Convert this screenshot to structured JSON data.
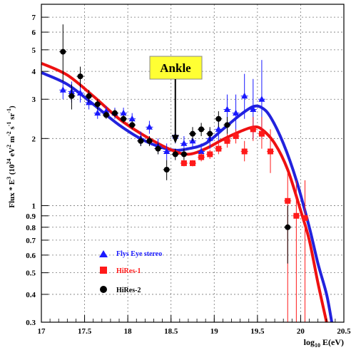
{
  "chart_data": {
    "type": "scatter",
    "title": "",
    "xlabel": "log10 E(eV)",
    "xlabel_parts": {
      "pre": "log",
      "sub": "10",
      "post": " E(eV)"
    },
    "ylabel": "Flux * E3 (10^24 eV2 m-2 s-1 sr-1)",
    "ylabel_parts": {
      "flux": "Flux * E",
      "e_sup": "3",
      "open": " (10",
      "p24": "24",
      "ev": " eV",
      "ev_sup": "2",
      "m": " m",
      "m_sup": "-2",
      "s": " s",
      "s_sup": "-1",
      "sr": " sr",
      "sr_sup": "-1",
      "close": ")"
    },
    "xlim": [
      17,
      20.5
    ],
    "ylim": [
      0.3,
      8
    ],
    "yscale": "log",
    "grid": true,
    "x_ticks": [
      "17",
      "17.5",
      "18",
      "18.5",
      "19",
      "19.5",
      "20",
      "20.5"
    ],
    "y_ticks": [
      "0.3",
      "0.4",
      "0.5",
      "0.6",
      "0.7",
      "0.8",
      "0.9",
      "1",
      "2",
      "3",
      "4",
      "5",
      "6",
      "7"
    ],
    "legend_position": "lower-left",
    "annotation": {
      "text": "Ankle",
      "arrow_to_x": 18.55,
      "arrow_to_y": 1.9,
      "background": "#ffff33"
    },
    "series": [
      {
        "name": "Flys Eye stereo",
        "marker": "triangle",
        "color": "#1a1aff",
        "points": [
          {
            "x": 17.25,
            "y": 3.3,
            "yerr": [
              3.0,
              3.6
            ]
          },
          {
            "x": 17.35,
            "y": 3.25,
            "yerr": [
              2.9,
              3.6
            ]
          },
          {
            "x": 17.45,
            "y": 3.2,
            "yerr": [
              2.9,
              3.5
            ]
          },
          {
            "x": 17.55,
            "y": 2.9,
            "yerr": [
              2.7,
              3.1
            ]
          },
          {
            "x": 17.65,
            "y": 2.6,
            "yerr": [
              2.45,
              2.75
            ]
          },
          {
            "x": 17.75,
            "y": 2.65,
            "yerr": [
              2.5,
              2.8
            ]
          },
          {
            "x": 17.85,
            "y": 2.6,
            "yerr": [
              2.45,
              2.75
            ]
          },
          {
            "x": 17.95,
            "y": 2.6,
            "yerr": [
              2.45,
              2.75
            ]
          },
          {
            "x": 18.05,
            "y": 2.45,
            "yerr": [
              2.3,
              2.6
            ]
          },
          {
            "x": 18.15,
            "y": 2.0,
            "yerr": [
              1.85,
              2.15
            ]
          },
          {
            "x": 18.25,
            "y": 2.25,
            "yerr": [
              2.1,
              2.4
            ]
          },
          {
            "x": 18.35,
            "y": 1.85,
            "yerr": [
              1.7,
              2.0
            ]
          },
          {
            "x": 18.45,
            "y": 1.75,
            "yerr": [
              1.6,
              1.9
            ]
          },
          {
            "x": 18.55,
            "y": 2.05,
            "yerr": [
              1.9,
              2.2
            ]
          },
          {
            "x": 18.65,
            "y": 1.9,
            "yerr": [
              1.75,
              2.05
            ]
          },
          {
            "x": 18.75,
            "y": 1.95,
            "yerr": [
              1.8,
              2.1
            ]
          },
          {
            "x": 18.85,
            "y": 1.75,
            "yerr": [
              1.6,
              1.9
            ]
          },
          {
            "x": 18.95,
            "y": 2.0,
            "yerr": [
              1.8,
              2.2
            ]
          },
          {
            "x": 19.05,
            "y": 2.2,
            "yerr": [
              1.95,
              2.5
            ]
          },
          {
            "x": 19.15,
            "y": 2.7,
            "yerr": [
              2.3,
              3.15
            ]
          },
          {
            "x": 19.25,
            "y": 2.6,
            "yerr": [
              2.15,
              3.15
            ]
          },
          {
            "x": 19.35,
            "y": 3.1,
            "yerr": [
              2.45,
              3.9
            ]
          },
          {
            "x": 19.45,
            "y": 2.7,
            "yerr": [
              2.0,
              3.7
            ]
          },
          {
            "x": 19.55,
            "y": 3.0,
            "yerr": [
              2.0,
              4.5
            ]
          }
        ]
      },
      {
        "name": "HiRes-1",
        "marker": "square",
        "color": "#ff1a1a",
        "points": [
          {
            "x": 18.65,
            "y": 1.55,
            "yerr": [
              1.5,
              1.6
            ]
          },
          {
            "x": 18.75,
            "y": 1.55,
            "yerr": [
              1.5,
              1.6
            ]
          },
          {
            "x": 18.85,
            "y": 1.65,
            "yerr": [
              1.58,
              1.72
            ]
          },
          {
            "x": 18.95,
            "y": 1.7,
            "yerr": [
              1.62,
              1.78
            ]
          },
          {
            "x": 19.05,
            "y": 1.8,
            "yerr": [
              1.7,
              1.9
            ]
          },
          {
            "x": 19.15,
            "y": 1.95,
            "yerr": [
              1.82,
              2.1
            ]
          },
          {
            "x": 19.25,
            "y": 2.05,
            "yerr": [
              1.9,
              2.2
            ]
          },
          {
            "x": 19.35,
            "y": 1.75,
            "yerr": [
              1.58,
              1.95
            ]
          },
          {
            "x": 19.45,
            "y": 2.2,
            "yerr": [
              1.95,
              2.5
            ]
          },
          {
            "x": 19.55,
            "y": 2.1,
            "yerr": [
              1.8,
              2.5
            ]
          },
          {
            "x": 19.65,
            "y": 1.75,
            "yerr": [
              1.4,
              2.2
            ]
          },
          {
            "x": 19.85,
            "y": 1.05,
            "yerr": [
              0.3,
              1.4
            ]
          },
          {
            "x": 19.95,
            "y": 0.9,
            "yerr": [
              0.3,
              1.3
            ]
          },
          {
            "x": 20.05,
            "y": 0.88,
            "yerr": [
              0.3,
              1.3
            ]
          }
        ]
      },
      {
        "name": "HiRes-2",
        "marker": "circle",
        "color": "#000000",
        "points": [
          {
            "x": 17.25,
            "y": 4.9,
            "yerr": [
              3.6,
              6.5
            ]
          },
          {
            "x": 17.35,
            "y": 3.1,
            "yerr": [
              2.7,
              3.5
            ]
          },
          {
            "x": 17.45,
            "y": 3.8,
            "yerr": [
              3.4,
              4.2
            ]
          },
          {
            "x": 17.55,
            "y": 3.1,
            "yerr": [
              2.9,
              3.3
            ]
          },
          {
            "x": 17.65,
            "y": 2.85,
            "yerr": [
              2.7,
              3.0
            ]
          },
          {
            "x": 17.75,
            "y": 2.55,
            "yerr": [
              2.45,
              2.65
            ]
          },
          {
            "x": 17.85,
            "y": 2.6,
            "yerr": [
              2.5,
              2.7
            ]
          },
          {
            "x": 17.95,
            "y": 2.45,
            "yerr": [
              2.35,
              2.55
            ]
          },
          {
            "x": 18.05,
            "y": 2.3,
            "yerr": [
              2.2,
              2.4
            ]
          },
          {
            "x": 18.15,
            "y": 1.95,
            "yerr": [
              1.85,
              2.05
            ]
          },
          {
            "x": 18.25,
            "y": 1.95,
            "yerr": [
              1.85,
              2.05
            ]
          },
          {
            "x": 18.35,
            "y": 1.8,
            "yerr": [
              1.7,
              1.9
            ]
          },
          {
            "x": 18.45,
            "y": 1.45,
            "yerr": [
              1.3,
              1.6
            ]
          },
          {
            "x": 18.55,
            "y": 1.7,
            "yerr": [
              1.6,
              1.8
            ]
          },
          {
            "x": 18.65,
            "y": 1.7,
            "yerr": [
              1.6,
              1.8
            ]
          },
          {
            "x": 18.75,
            "y": 2.1,
            "yerr": [
              1.95,
              2.25
            ]
          },
          {
            "x": 18.85,
            "y": 2.2,
            "yerr": [
              2.05,
              2.35
            ]
          },
          {
            "x": 18.95,
            "y": 2.1,
            "yerr": [
              1.95,
              2.25
            ]
          },
          {
            "x": 19.05,
            "y": 2.45,
            "yerr": [
              2.25,
              2.65
            ]
          },
          {
            "x": 19.15,
            "y": 2.3,
            "yerr": [
              2.1,
              2.5
            ]
          },
          {
            "x": 19.85,
            "y": 0.8,
            "yerr": [
              0.55,
              1.0
            ]
          }
        ]
      },
      {
        "name": "Flys Eye stereo fit",
        "type": "line",
        "color": "#2222dd",
        "points": [
          [
            17,
            3.95
          ],
          [
            17.3,
            3.5
          ],
          [
            17.6,
            2.85
          ],
          [
            17.9,
            2.3
          ],
          [
            18.2,
            1.95
          ],
          [
            18.5,
            1.78
          ],
          [
            18.7,
            1.8
          ],
          [
            18.9,
            1.9
          ],
          [
            19.1,
            2.2
          ],
          [
            19.3,
            2.55
          ],
          [
            19.45,
            2.78
          ],
          [
            19.55,
            2.75
          ],
          [
            19.65,
            2.5
          ],
          [
            19.8,
            1.9
          ],
          [
            19.95,
            1.3
          ],
          [
            20.1,
            0.8
          ],
          [
            20.2,
            0.55
          ],
          [
            20.3,
            0.4
          ],
          [
            20.36,
            0.3
          ]
        ]
      },
      {
        "name": "HiRes fit",
        "type": "line",
        "color": "#ee1111",
        "points": [
          [
            17,
            4.35
          ],
          [
            17.3,
            3.85
          ],
          [
            17.6,
            3.1
          ],
          [
            17.9,
            2.45
          ],
          [
            18.2,
            2.05
          ],
          [
            18.5,
            1.78
          ],
          [
            18.7,
            1.7
          ],
          [
            18.9,
            1.8
          ],
          [
            19.1,
            1.98
          ],
          [
            19.3,
            2.15
          ],
          [
            19.45,
            2.25
          ],
          [
            19.55,
            2.2
          ],
          [
            19.7,
            1.9
          ],
          [
            19.85,
            1.45
          ],
          [
            20.0,
            0.95
          ],
          [
            20.1,
            0.7
          ],
          [
            20.2,
            0.45
          ],
          [
            20.3,
            0.3
          ]
        ]
      }
    ]
  }
}
